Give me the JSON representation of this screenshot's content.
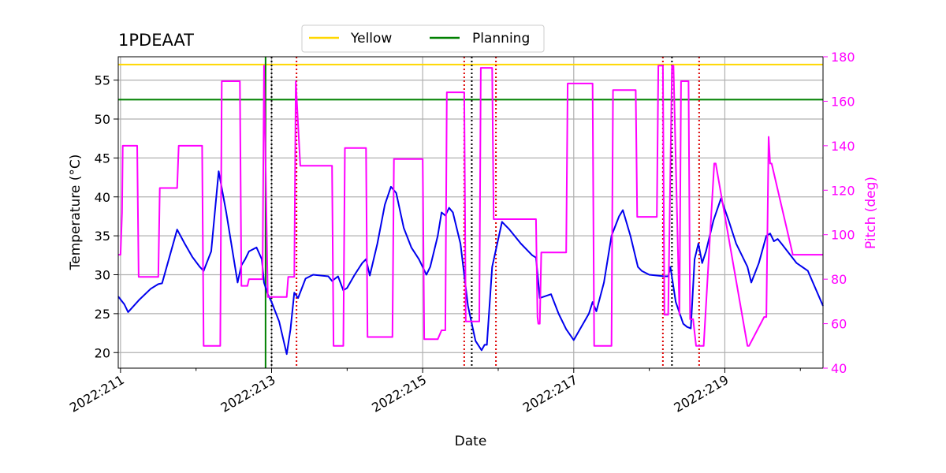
{
  "chart_data": {
    "type": "line",
    "title": "1PDEAAT",
    "xlabel": "Date",
    "ylabel": "Temperature ($^\\circ$C)",
    "ylabel_display": "Temperature (°C)",
    "y2label": "Pitch (deg)",
    "xlim": [
      210.97,
      220.3
    ],
    "ylim": [
      18,
      58
    ],
    "y2lim": [
      40,
      180
    ],
    "x_ticks": [
      211,
      213,
      215,
      217,
      219
    ],
    "x_tick_labels": [
      "2022:211",
      "2022:213",
      "2022:215",
      "2022:217",
      "2022:219"
    ],
    "y_ticks": [
      20,
      25,
      30,
      35,
      40,
      45,
      50,
      55
    ],
    "y2_ticks": [
      40,
      60,
      80,
      100,
      120,
      140,
      160,
      180
    ],
    "grid": true,
    "legend": {
      "placement": "top-center",
      "entries": [
        {
          "label": "Yellow",
          "color": "#ffd700"
        },
        {
          "label": "Planning",
          "color": "#008000"
        }
      ]
    },
    "hlines": [
      {
        "name": "Yellow",
        "y": 57.0,
        "color": "#ffd700"
      },
      {
        "name": "Planning",
        "y": 52.5,
        "color": "#008000"
      }
    ],
    "vline_solid": {
      "x": 212.92,
      "color": "#008000"
    },
    "vlines_black_dotted": [
      213.0,
      215.65,
      218.3
    ],
    "vlines_red_dotted": [
      213.33,
      215.55,
      215.97,
      218.18,
      218.66
    ],
    "series": [
      {
        "name": "Temperature",
        "axis": "left",
        "color": "#0000ee",
        "x": [
          210.97,
          211.05,
          211.1,
          211.25,
          211.4,
          211.5,
          211.55,
          211.75,
          211.85,
          211.95,
          212.05,
          212.1,
          212.2,
          212.3,
          212.4,
          212.5,
          212.55,
          212.6,
          212.65,
          212.7,
          212.8,
          212.87,
          212.9,
          212.95,
          213.0,
          213.1,
          213.2,
          213.25,
          213.3,
          213.35,
          213.45,
          213.55,
          213.75,
          213.8,
          213.88,
          213.95,
          214.0,
          214.1,
          214.2,
          214.25,
          214.3,
          214.4,
          214.5,
          214.58,
          214.65,
          214.75,
          214.85,
          214.95,
          215.05,
          215.1,
          215.2,
          215.25,
          215.3,
          215.35,
          215.4,
          215.5,
          215.6,
          215.7,
          215.78,
          215.82,
          215.85,
          215.92,
          216.05,
          216.15,
          216.3,
          216.45,
          216.5,
          216.55,
          216.7,
          216.8,
          216.9,
          217.0,
          217.2,
          217.25,
          217.3,
          217.4,
          217.5,
          217.6,
          217.65,
          217.75,
          217.85,
          217.9,
          218.0,
          218.2,
          218.25,
          218.28,
          218.35,
          218.45,
          218.5,
          218.55,
          218.6,
          218.65,
          218.7,
          218.75,
          218.85,
          218.95,
          219.05,
          219.15,
          219.3,
          219.35,
          219.45,
          219.55,
          219.6,
          219.65,
          219.7,
          219.75,
          219.95,
          220.1,
          220.3
        ],
        "y": [
          27.2,
          26.2,
          25.2,
          26.8,
          28.2,
          28.8,
          28.9,
          35.8,
          34.0,
          32.3,
          31.0,
          30.5,
          33.0,
          43.3,
          38.0,
          32.0,
          29.0,
          31.2,
          32.0,
          33.0,
          33.5,
          32.0,
          29.0,
          27.5,
          26.5,
          24.0,
          19.8,
          23.0,
          27.7,
          27.0,
          29.5,
          30.0,
          29.8,
          29.2,
          29.8,
          28.0,
          28.3,
          30.0,
          31.5,
          32.0,
          29.9,
          34.0,
          39.0,
          41.3,
          40.5,
          36.0,
          33.5,
          32.0,
          30.0,
          31.0,
          35.0,
          38.0,
          37.6,
          38.6,
          38.0,
          34.0,
          26.0,
          21.5,
          20.3,
          21.0,
          21.0,
          31.0,
          36.8,
          35.8,
          34.0,
          32.5,
          32.2,
          27.0,
          27.5,
          25.0,
          23.0,
          21.6,
          25.0,
          26.5,
          25.3,
          29.0,
          35.0,
          37.5,
          38.3,
          35.0,
          31.0,
          30.5,
          30.0,
          29.8,
          29.8,
          31.0,
          26.5,
          23.7,
          23.3,
          23.1,
          32.0,
          34.0,
          31.5,
          33.0,
          37.0,
          39.8,
          37.0,
          34.0,
          31.0,
          29.0,
          31.5,
          35.0,
          35.3,
          34.3,
          34.6,
          34.0,
          31.5,
          30.5,
          26.0
        ]
      },
      {
        "name": "Pitch",
        "axis": "right",
        "color": "#ff00ff",
        "x": [
          210.97,
          211.0,
          211.02,
          211.03,
          211.22,
          211.24,
          211.5,
          211.52,
          211.75,
          211.77,
          212.08,
          212.1,
          212.32,
          212.34,
          212.58,
          212.6,
          212.68,
          212.7,
          212.88,
          212.9,
          212.95,
          213.0,
          213.02,
          213.2,
          213.22,
          213.3,
          213.32,
          213.38,
          213.42,
          213.43,
          213.8,
          213.82,
          213.95,
          213.97,
          214.25,
          214.27,
          214.3,
          214.6,
          214.62,
          215.0,
          215.02,
          215.2,
          215.25,
          215.3,
          215.32,
          215.55,
          215.57,
          215.75,
          215.77,
          215.92,
          215.94,
          216.5,
          216.52,
          216.53,
          216.55,
          216.57,
          216.9,
          216.92,
          217.25,
          217.27,
          217.5,
          217.52,
          217.82,
          217.84,
          218.1,
          218.12,
          218.18,
          218.2,
          218.25,
          218.3,
          218.32,
          218.4,
          218.42,
          218.52,
          218.54,
          218.58,
          218.62,
          218.7,
          218.72,
          218.86,
          218.88,
          219.3,
          219.32,
          219.52,
          219.55,
          219.58,
          219.6,
          219.62,
          219.9,
          219.92,
          220.3
        ],
        "y": [
          91,
          91,
          110,
          140,
          140,
          81,
          81,
          121,
          121,
          140,
          140,
          50,
          50,
          169,
          169,
          77,
          77,
          80,
          80,
          176,
          72,
          72,
          72,
          72,
          81,
          81,
          169,
          131,
          131,
          131,
          131,
          50,
          50,
          139,
          139,
          54,
          54,
          54,
          134,
          134,
          53,
          53,
          57,
          57,
          164,
          164,
          61,
          61,
          175,
          175,
          107,
          107,
          63,
          60,
          60,
          92,
          92,
          168,
          168,
          50,
          50,
          165,
          165,
          108,
          108,
          176,
          176,
          64,
          64,
          176,
          176,
          64,
          169,
          169,
          62,
          62,
          50,
          50,
          50,
          132,
          132,
          50,
          50,
          63,
          63,
          144,
          132,
          132,
          91,
          91,
          91
        ]
      }
    ]
  }
}
